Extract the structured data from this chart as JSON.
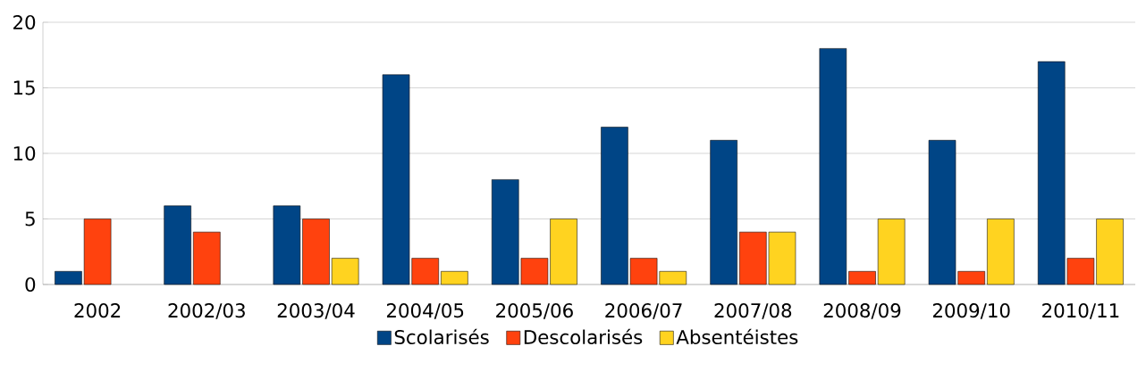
{
  "chart_data": {
    "type": "bar",
    "categories": [
      "2002",
      "2002/03",
      "2003/04",
      "2004/05",
      "2005/06",
      "2006/07",
      "2007/08",
      "2008/09",
      "2009/10",
      "2010/11"
    ],
    "series": [
      {
        "name": "Scolarisés",
        "color": "#004586",
        "values": [
          1,
          6,
          6,
          16,
          8,
          12,
          11,
          18,
          11,
          17
        ]
      },
      {
        "name": "Descolarisés",
        "color": "#ff420e",
        "values": [
          5,
          4,
          5,
          2,
          2,
          2,
          4,
          1,
          1,
          2
        ]
      },
      {
        "name": "Absentéistes",
        "color": "#ffd320",
        "values": [
          null,
          null,
          2,
          1,
          5,
          1,
          4,
          5,
          5,
          5
        ]
      }
    ],
    "ylim": [
      0,
      20
    ],
    "yticks": [
      0,
      5,
      10,
      15,
      20
    ],
    "grid": "y",
    "legend": "bottom"
  }
}
